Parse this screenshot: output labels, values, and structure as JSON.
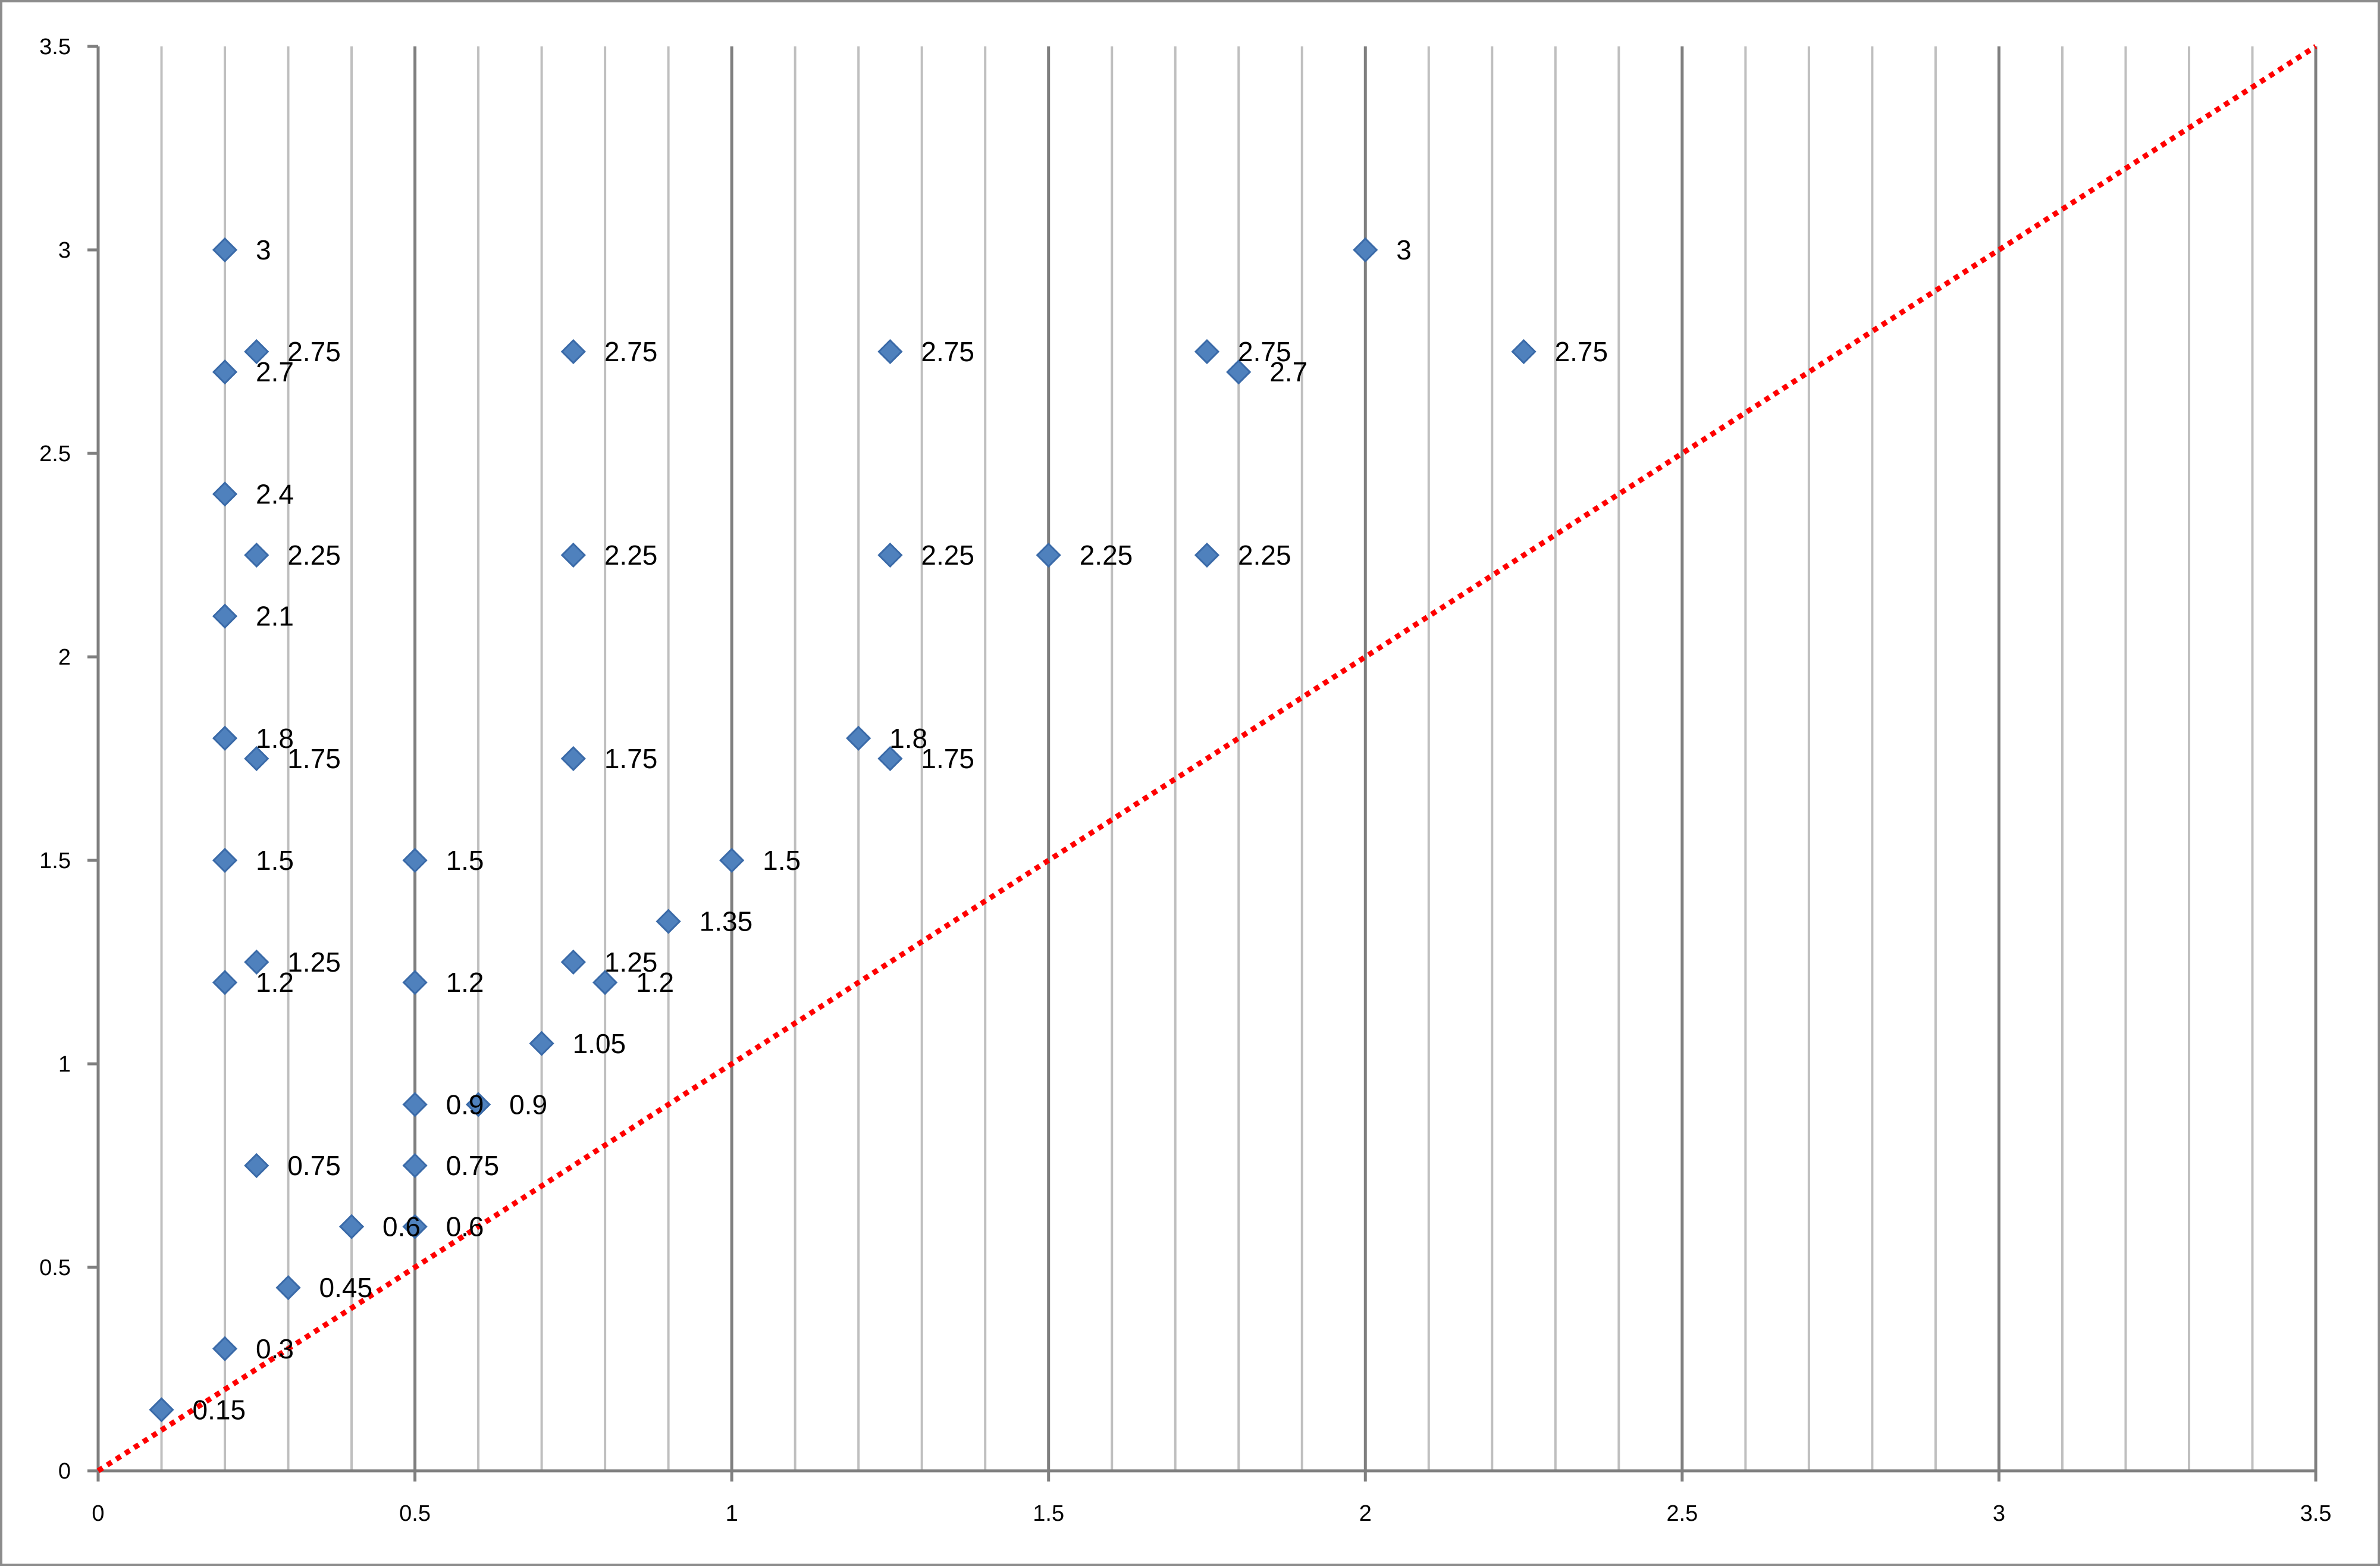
{
  "chart_data": {
    "type": "scatter",
    "title": "",
    "xlabel": "",
    "ylabel": "",
    "xlim": [
      0,
      3.5
    ],
    "ylim": [
      0,
      3.5
    ],
    "x_ticks": [
      "0",
      "0.5",
      "1",
      "1.5",
      "2",
      "2.5",
      "3",
      "3.5"
    ],
    "y_ticks": [
      "0",
      "0.5",
      "1",
      "1.5",
      "2",
      "2.5",
      "3",
      "3.5"
    ],
    "vertical_gridlines_minor_step": 0.1,
    "vertical_gridlines_major_step": 0.5,
    "horizontal_gridlines": false,
    "legend": "none",
    "marker": "diamond",
    "colors": {
      "marker_fill": "#4F81BD",
      "marker_stroke": "#3A6AA8",
      "reference_line": "#FF0000",
      "major_grid": "#7f7f7f",
      "minor_grid": "#bfbfbf",
      "axis": "#7f7f7f"
    },
    "reference_line": {
      "type": "y=x",
      "style": "dotted",
      "from": 0,
      "to": 3.5
    },
    "points": [
      {
        "x": 0.1,
        "y": 0.15,
        "label": "0.15"
      },
      {
        "x": 0.2,
        "y": 0.3,
        "label": "0.3"
      },
      {
        "x": 0.3,
        "y": 0.45,
        "label": "0.45"
      },
      {
        "x": 0.4,
        "y": 0.6,
        "label": "0.6"
      },
      {
        "x": 0.5,
        "y": 0.6,
        "label": "0.6"
      },
      {
        "x": 0.25,
        "y": 0.75,
        "label": "0.75"
      },
      {
        "x": 0.5,
        "y": 0.75,
        "label": "0.75"
      },
      {
        "x": 0.5,
        "y": 0.9,
        "label": "0.9"
      },
      {
        "x": 0.6,
        "y": 0.9,
        "label": "0.9"
      },
      {
        "x": 0.7,
        "y": 1.05,
        "label": "1.05"
      },
      {
        "x": 0.2,
        "y": 1.2,
        "label": "1.2"
      },
      {
        "x": 0.5,
        "y": 1.2,
        "label": "1.2"
      },
      {
        "x": 0.8,
        "y": 1.2,
        "label": "1.2"
      },
      {
        "x": 0.25,
        "y": 1.25,
        "label": "1.25"
      },
      {
        "x": 0.75,
        "y": 1.25,
        "label": "1.25"
      },
      {
        "x": 0.9,
        "y": 1.35,
        "label": "1.35"
      },
      {
        "x": 0.2,
        "y": 1.5,
        "label": "1.5"
      },
      {
        "x": 0.5,
        "y": 1.5,
        "label": "1.5"
      },
      {
        "x": 1.0,
        "y": 1.5,
        "label": "1.5"
      },
      {
        "x": 0.25,
        "y": 1.75,
        "label": "1.75"
      },
      {
        "x": 0.75,
        "y": 1.75,
        "label": "1.75"
      },
      {
        "x": 1.25,
        "y": 1.75,
        "label": "1.75"
      },
      {
        "x": 0.2,
        "y": 1.8,
        "label": "1.8"
      },
      {
        "x": 1.2,
        "y": 1.8,
        "label": "1.8"
      },
      {
        "x": 0.2,
        "y": 2.1,
        "label": "2.1"
      },
      {
        "x": 0.25,
        "y": 2.25,
        "label": "2.25"
      },
      {
        "x": 0.75,
        "y": 2.25,
        "label": "2.25"
      },
      {
        "x": 1.25,
        "y": 2.25,
        "label": "2.25"
      },
      {
        "x": 1.5,
        "y": 2.25,
        "label": "2.25"
      },
      {
        "x": 1.75,
        "y": 2.25,
        "label": "2.25"
      },
      {
        "x": 0.2,
        "y": 2.4,
        "label": "2.4"
      },
      {
        "x": 0.2,
        "y": 2.7,
        "label": "2.7"
      },
      {
        "x": 1.8,
        "y": 2.7,
        "label": "2.7"
      },
      {
        "x": 0.25,
        "y": 2.75,
        "label": "2.75"
      },
      {
        "x": 0.75,
        "y": 2.75,
        "label": "2.75"
      },
      {
        "x": 1.25,
        "y": 2.75,
        "label": "2.75"
      },
      {
        "x": 1.75,
        "y": 2.75,
        "label": "2.75"
      },
      {
        "x": 2.25,
        "y": 2.75,
        "label": "2.75"
      },
      {
        "x": 0.2,
        "y": 3.0,
        "label": "3"
      },
      {
        "x": 2.0,
        "y": 3.0,
        "label": "3"
      }
    ]
  }
}
